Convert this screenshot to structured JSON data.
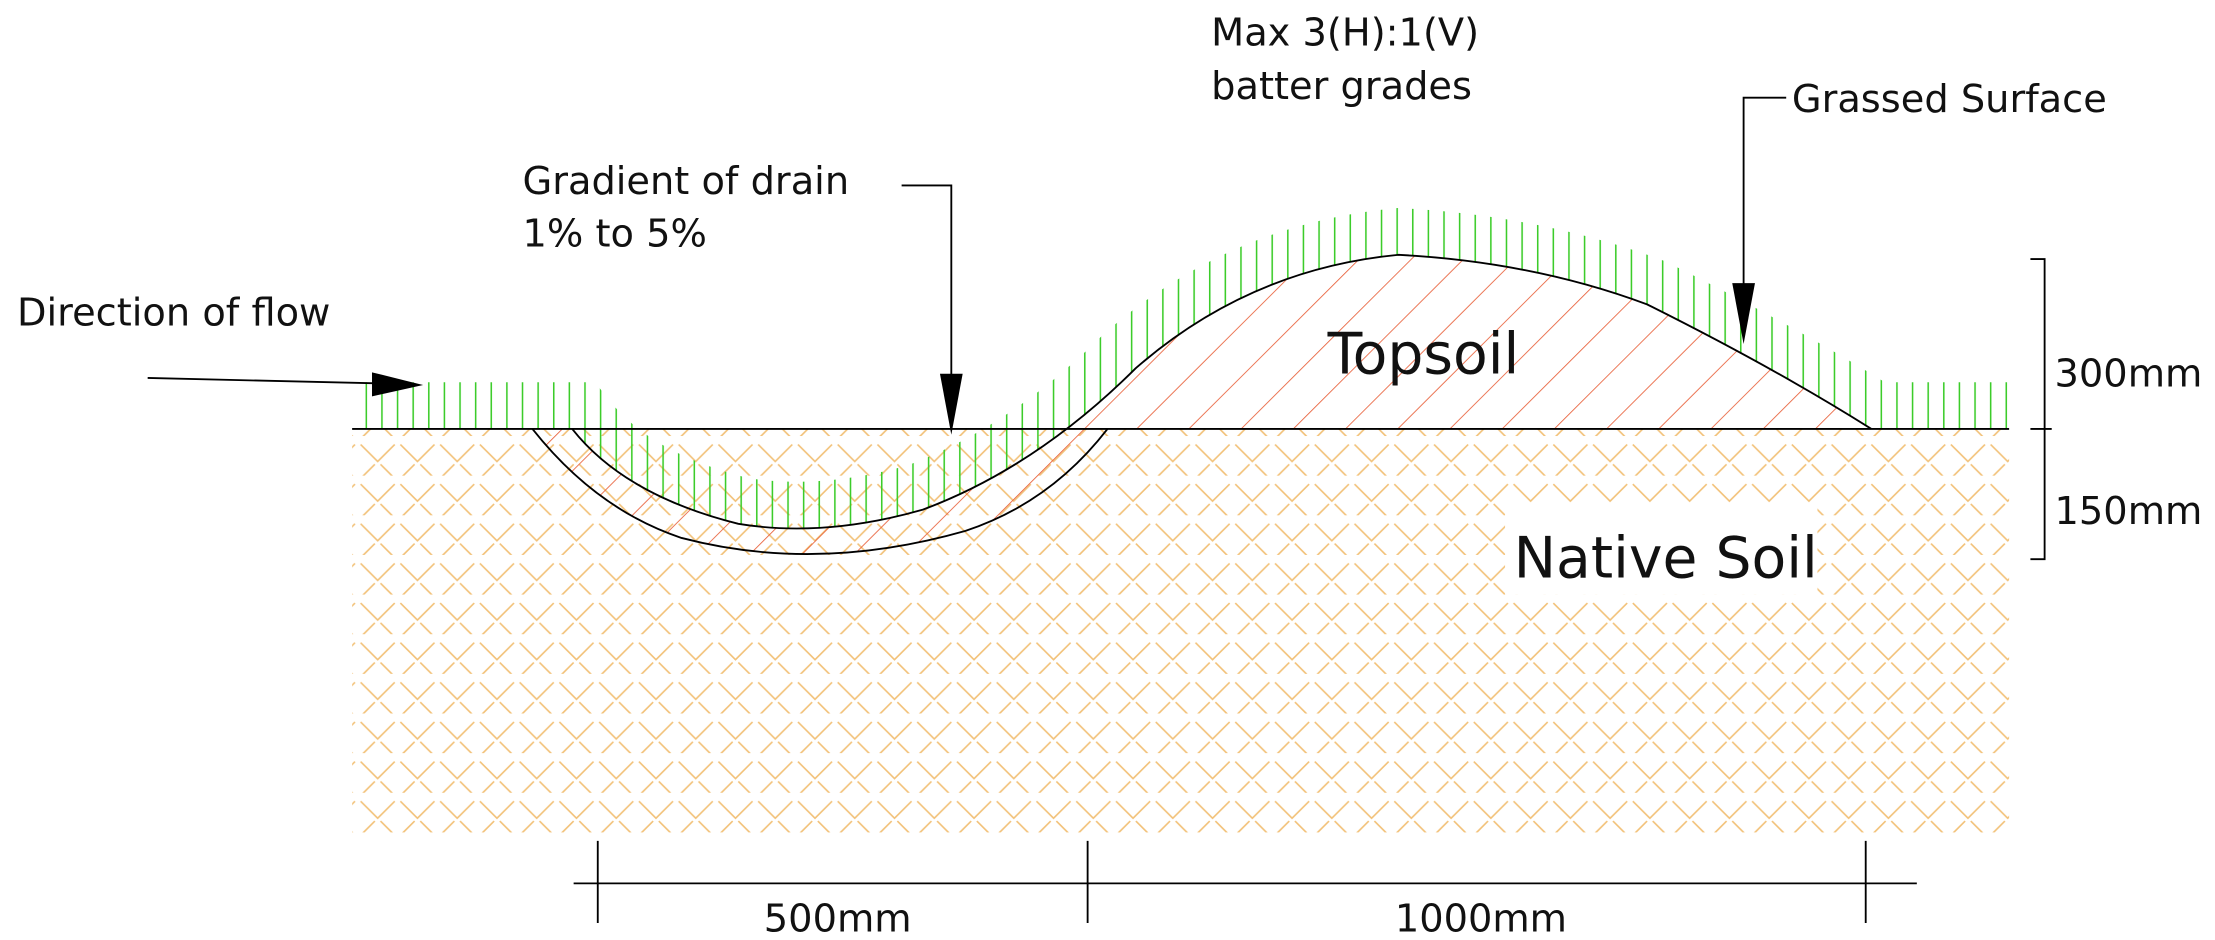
{
  "annotations": {
    "flow": "Direction of flow",
    "gradient": [
      "Gradient of drain",
      "1% to 5%"
    ],
    "batter": [
      "Max 3(H):1(V)",
      "batter grades"
    ],
    "grassed": "Grassed Surface"
  },
  "zones": {
    "topsoil": "Topsoil",
    "native": "Native Soil"
  },
  "dimensions": {
    "vertical": [
      "300mm",
      "150mm"
    ],
    "horizontal": [
      "500mm",
      "1000mm"
    ]
  }
}
